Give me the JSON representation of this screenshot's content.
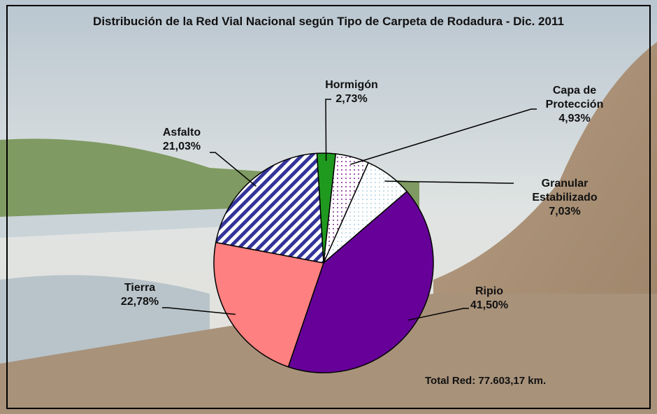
{
  "chart_data": {
    "type": "pie",
    "title": "Distribución de la Red Vial Nacional según Tipo de Carpeta de Rodadura - Dic. 2011",
    "categories": [
      "Hormigón",
      "Capa de Protección",
      "Granular Estabilizado",
      "Ripio",
      "Tierra",
      "Asfalto"
    ],
    "values": [
      2.73,
      4.93,
      7.03,
      41.5,
      22.78,
      21.03
    ],
    "value_labels": [
      "2,73%",
      "4,93%",
      "7,03%",
      "41,50%",
      "22,78%",
      "21,03%"
    ],
    "colors": [
      "#1f9a1f",
      "#7a2a8a",
      "#7fb0d0",
      "#660099",
      "#ff8080",
      "#333399"
    ],
    "annotation": "Total Red: 77.603,17 km."
  }
}
